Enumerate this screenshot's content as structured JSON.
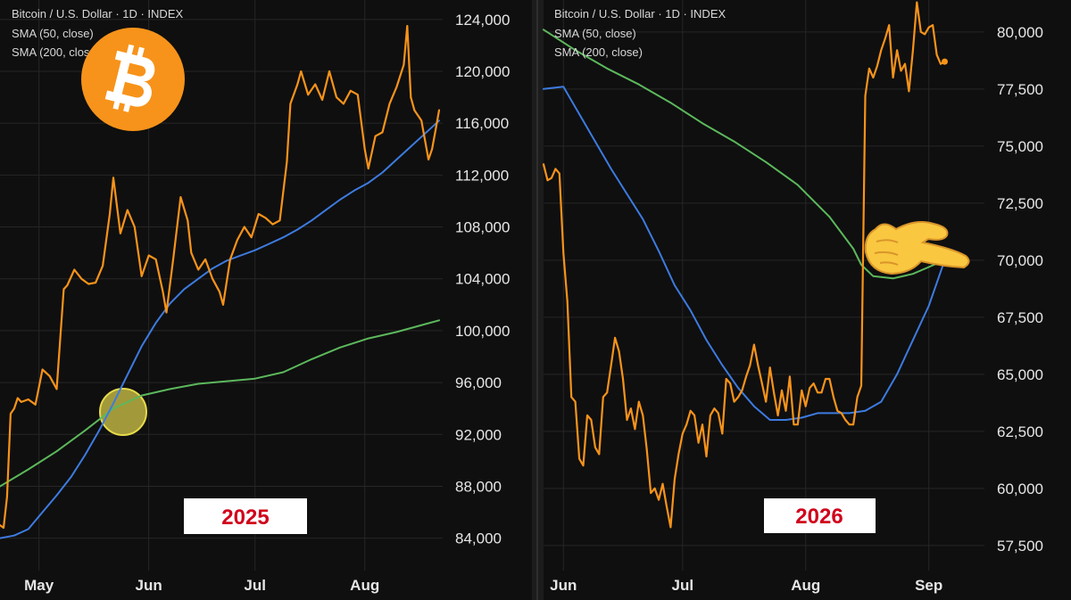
{
  "colors": {
    "background": "#0f0f0f",
    "grid": "#262626",
    "price": "#f7931a",
    "sma50": "#3d7be0",
    "sma200": "#5cb85c",
    "year_text": "#d0021b",
    "divider": "#2e2e2e"
  },
  "decorations": {
    "left_logo": "bitcoin-logo-icon",
    "right_pointer": "pointing-hand-emoji",
    "left_highlight": "golden-cross-circle"
  },
  "chart_data": [
    {
      "type": "line",
      "legend": [
        "Bitcoin / U.S. Dollar · 1D · INDEX",
        "SMA (50, close)",
        "SMA (200, close)"
      ],
      "year_label": "2025",
      "x_ticks": [
        {
          "label": "May",
          "date": "2025-05-01"
        },
        {
          "label": "Jun",
          "date": "2025-06-01"
        },
        {
          "label": "Jul",
          "date": "2025-07-01"
        },
        {
          "label": "Aug",
          "date": "2025-08-01"
        }
      ],
      "xlim": [
        "2025-04-20",
        "2025-08-23"
      ],
      "y_ticks": [
        "84,000",
        "88,000",
        "92,000",
        "96,000",
        "100,000",
        "104,000",
        "108,000",
        "112,000",
        "116,000",
        "120,000",
        "124,000"
      ],
      "ylim": [
        81500,
        125500
      ],
      "grid": true,
      "series": [
        {
          "name": "Bitcoin / U.S. Dollar · 1D · INDEX",
          "color": "#f7931a",
          "x": [
            "2025-04-20",
            "2025-04-21",
            "2025-04-22",
            "2025-04-23",
            "2025-04-24",
            "2025-04-25",
            "2025-04-26",
            "2025-04-28",
            "2025-04-30",
            "2025-05-02",
            "2025-05-04",
            "2025-05-06",
            "2025-05-08",
            "2025-05-09",
            "2025-05-11",
            "2025-05-13",
            "2025-05-15",
            "2025-05-17",
            "2025-05-19",
            "2025-05-21",
            "2025-05-22",
            "2025-05-24",
            "2025-05-26",
            "2025-05-28",
            "2025-05-30",
            "2025-06-01",
            "2025-06-03",
            "2025-06-05",
            "2025-06-06",
            "2025-06-08",
            "2025-06-10",
            "2025-06-12",
            "2025-06-13",
            "2025-06-15",
            "2025-06-17",
            "2025-06-19",
            "2025-06-21",
            "2025-06-22",
            "2025-06-24",
            "2025-06-26",
            "2025-06-28",
            "2025-06-30",
            "2025-07-02",
            "2025-07-04",
            "2025-07-06",
            "2025-07-08",
            "2025-07-10",
            "2025-07-11",
            "2025-07-13",
            "2025-07-14",
            "2025-07-16",
            "2025-07-18",
            "2025-07-20",
            "2025-07-22",
            "2025-07-24",
            "2025-07-26",
            "2025-07-28",
            "2025-07-30",
            "2025-08-01",
            "2025-08-02",
            "2025-08-04",
            "2025-08-06",
            "2025-08-08",
            "2025-08-10",
            "2025-08-12",
            "2025-08-13",
            "2025-08-14",
            "2025-08-15",
            "2025-08-17",
            "2025-08-19",
            "2025-08-20",
            "2025-08-21",
            "2025-08-22"
          ],
          "y": [
            85000,
            84800,
            87200,
            93600,
            94000,
            94800,
            94500,
            94700,
            94300,
            97000,
            96500,
            95500,
            103200,
            103500,
            104700,
            104000,
            103600,
            103700,
            105000,
            109000,
            111800,
            107500,
            109300,
            108000,
            104200,
            105800,
            105500,
            103000,
            101400,
            105700,
            110300,
            108500,
            106000,
            104700,
            105500,
            104000,
            103000,
            102000,
            105500,
            107000,
            108000,
            107200,
            109000,
            108700,
            108200,
            108500,
            113000,
            117500,
            119000,
            120000,
            118200,
            119000,
            117800,
            120000,
            118000,
            117500,
            118500,
            118200,
            114000,
            112500,
            115000,
            115300,
            117500,
            118800,
            120500,
            123500,
            118000,
            117000,
            116200,
            113200,
            114000,
            115500,
            117000
          ]
        },
        {
          "name": "SMA (50, close)",
          "color": "#3d7be0",
          "x": [
            "2025-04-20",
            "2025-04-24",
            "2025-04-28",
            "2025-05-02",
            "2025-05-06",
            "2025-05-10",
            "2025-05-14",
            "2025-05-18",
            "2025-05-22",
            "2025-05-26",
            "2025-05-30",
            "2025-06-03",
            "2025-06-07",
            "2025-06-11",
            "2025-06-15",
            "2025-06-19",
            "2025-06-23",
            "2025-06-27",
            "2025-07-01",
            "2025-07-05",
            "2025-07-09",
            "2025-07-13",
            "2025-07-17",
            "2025-07-21",
            "2025-07-25",
            "2025-07-29",
            "2025-08-02",
            "2025-08-06",
            "2025-08-10",
            "2025-08-14",
            "2025-08-18",
            "2025-08-22"
          ],
          "y": [
            84000,
            84200,
            84700,
            86000,
            87300,
            88700,
            90400,
            92300,
            94400,
            96600,
            98800,
            100600,
            102100,
            103200,
            104000,
            104800,
            105400,
            105800,
            106200,
            106700,
            107200,
            107800,
            108500,
            109300,
            110100,
            110800,
            111400,
            112200,
            113200,
            114200,
            115200,
            116200
          ]
        },
        {
          "name": "SMA (200, close)",
          "color": "#5cb85c",
          "x": [
            "2025-04-20",
            "2025-04-28",
            "2025-05-06",
            "2025-05-14",
            "2025-05-22",
            "2025-05-30",
            "2025-06-07",
            "2025-06-15",
            "2025-06-23",
            "2025-07-01",
            "2025-07-09",
            "2025-07-17",
            "2025-07-25",
            "2025-08-02",
            "2025-08-10",
            "2025-08-18",
            "2025-08-22"
          ],
          "y": [
            88000,
            89300,
            90700,
            92300,
            94000,
            95000,
            95500,
            95900,
            96100,
            96300,
            96800,
            97800,
            98700,
            99400,
            99900,
            100500,
            100800
          ]
        }
      ]
    },
    {
      "type": "line",
      "legend": [
        "Bitcoin / U.S. Dollar · 1D · INDEX",
        "SMA (50, close)",
        "SMA (200, close)"
      ],
      "year_label": "2026",
      "x_ticks": [
        {
          "label": "Jun",
          "date": "2026-06-01"
        },
        {
          "label": "Jul",
          "date": "2026-07-01"
        },
        {
          "label": "Aug",
          "date": "2026-08-01"
        },
        {
          "label": "Sep",
          "date": "2026-09-01"
        }
      ],
      "xlim": [
        "2026-05-27",
        "2026-09-15"
      ],
      "y_ticks": [
        "57,500",
        "60,000",
        "62,500",
        "65,000",
        "67,500",
        "70,000",
        "72,500",
        "75,000",
        "77,500",
        "80,000"
      ],
      "ylim": [
        56400,
        81400
      ],
      "grid": true,
      "series": [
        {
          "name": "Bitcoin / U.S. Dollar · 1D · INDEX",
          "color": "#f7931a",
          "x": [
            "2026-05-27",
            "2026-05-28",
            "2026-05-29",
            "2026-05-30",
            "2026-05-31",
            "2026-06-01",
            "2026-06-02",
            "2026-06-03",
            "2026-06-04",
            "2026-06-05",
            "2026-06-06",
            "2026-06-07",
            "2026-06-08",
            "2026-06-09",
            "2026-06-10",
            "2026-06-11",
            "2026-06-12",
            "2026-06-13",
            "2026-06-14",
            "2026-06-15",
            "2026-06-16",
            "2026-06-17",
            "2026-06-18",
            "2026-06-19",
            "2026-06-20",
            "2026-06-21",
            "2026-06-22",
            "2026-06-23",
            "2026-06-24",
            "2026-06-25",
            "2026-06-26",
            "2026-06-27",
            "2026-06-28",
            "2026-06-29",
            "2026-06-30",
            "2026-07-01",
            "2026-07-02",
            "2026-07-03",
            "2026-07-04",
            "2026-07-05",
            "2026-07-06",
            "2026-07-07",
            "2026-07-08",
            "2026-07-09",
            "2026-07-10",
            "2026-07-11",
            "2026-07-12",
            "2026-07-13",
            "2026-07-14",
            "2026-07-15",
            "2026-07-16",
            "2026-07-17",
            "2026-07-18",
            "2026-07-19",
            "2026-07-20",
            "2026-07-21",
            "2026-07-22",
            "2026-07-23",
            "2026-07-24",
            "2026-07-25",
            "2026-07-26",
            "2026-07-27",
            "2026-07-28",
            "2026-07-29",
            "2026-07-30",
            "2026-07-31",
            "2026-08-01",
            "2026-08-02",
            "2026-08-03",
            "2026-08-04",
            "2026-08-05",
            "2026-08-06",
            "2026-08-07",
            "2026-08-08",
            "2026-08-09",
            "2026-08-10",
            "2026-08-11",
            "2026-08-12",
            "2026-08-13",
            "2026-08-14",
            "2026-08-15",
            "2026-08-16",
            "2026-08-17",
            "2026-08-18",
            "2026-08-19",
            "2026-08-20",
            "2026-08-21",
            "2026-08-22",
            "2026-08-23",
            "2026-08-24",
            "2026-08-25",
            "2026-08-26",
            "2026-08-27",
            "2026-08-28",
            "2026-08-29",
            "2026-08-30",
            "2026-08-31",
            "2026-09-01",
            "2026-09-02",
            "2026-09-03",
            "2026-09-04",
            "2026-09-05"
          ],
          "y": [
            74200,
            73500,
            73600,
            74000,
            73800,
            70300,
            68200,
            64000,
            63800,
            61300,
            61000,
            63200,
            63000,
            61800,
            61500,
            64000,
            64200,
            65400,
            66600,
            66000,
            64800,
            63000,
            63500,
            62600,
            63800,
            63200,
            61700,
            59800,
            60000,
            59500,
            60200,
            59200,
            58300,
            60400,
            61500,
            62400,
            62800,
            63400,
            63200,
            62000,
            62800,
            61400,
            63200,
            63500,
            63300,
            62400,
            64800,
            64600,
            63800,
            64000,
            64300,
            64900,
            65400,
            66300,
            65400,
            64600,
            63800,
            65300,
            64200,
            63200,
            64300,
            63400,
            64900,
            62800,
            62800,
            64300,
            63600,
            64400,
            64600,
            64200,
            64200,
            64800,
            64800,
            64000,
            63400,
            63300,
            63000,
            62800,
            62800,
            64000,
            64500,
            77200,
            78400,
            78000,
            78500,
            79200,
            79700,
            80300,
            78000,
            79200,
            78300,
            78600,
            77400,
            79200,
            81300,
            80000,
            79900,
            80200,
            80300,
            79000,
            78600,
            78700
          ]
        },
        {
          "name": "SMA (50, close)",
          "color": "#3d7be0",
          "x": [
            "2026-05-27",
            "2026-06-01",
            "2026-06-05",
            "2026-06-09",
            "2026-06-13",
            "2026-06-17",
            "2026-06-21",
            "2026-06-25",
            "2026-06-29",
            "2026-07-03",
            "2026-07-07",
            "2026-07-11",
            "2026-07-15",
            "2026-07-19",
            "2026-07-23",
            "2026-07-27",
            "2026-07-31",
            "2026-08-04",
            "2026-08-08",
            "2026-08-12",
            "2026-08-16",
            "2026-08-20",
            "2026-08-24",
            "2026-08-28",
            "2026-09-01",
            "2026-09-05"
          ],
          "y": [
            77500,
            77600,
            76400,
            75200,
            74000,
            72900,
            71800,
            70400,
            68900,
            67800,
            66500,
            65400,
            64400,
            63600,
            63000,
            63000,
            63100,
            63300,
            63300,
            63300,
            63400,
            63800,
            65000,
            66500,
            68000,
            70000
          ]
        },
        {
          "name": "SMA (200, close)",
          "color": "#5cb85c",
          "x": [
            "2026-05-27",
            "2026-06-04",
            "2026-06-12",
            "2026-06-20",
            "2026-06-28",
            "2026-07-06",
            "2026-07-14",
            "2026-07-22",
            "2026-07-30",
            "2026-08-07",
            "2026-08-13",
            "2026-08-15",
            "2026-08-18",
            "2026-08-23",
            "2026-08-28",
            "2026-09-01",
            "2026-09-05"
          ],
          "y": [
            80100,
            79200,
            78400,
            77700,
            76900,
            76000,
            75200,
            74300,
            73300,
            71900,
            70500,
            69800,
            69300,
            69200,
            69400,
            69700,
            70000
          ]
        }
      ]
    }
  ]
}
